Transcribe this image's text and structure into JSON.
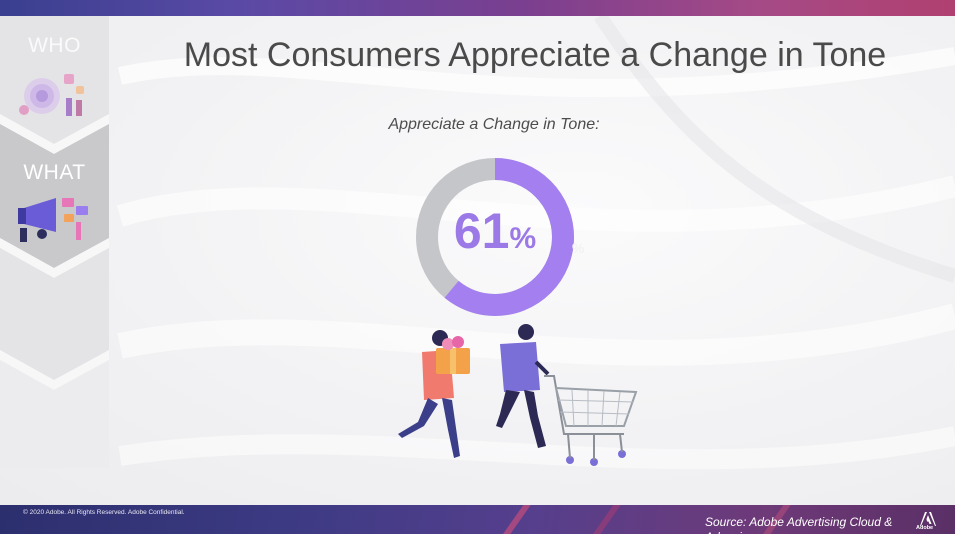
{
  "slide": {
    "title": "Most Consumers Appreciate a Change in Tone",
    "subtitle": "Appreciate a Change in Tone:"
  },
  "nav": {
    "items": [
      {
        "label": "WHO"
      },
      {
        "label": "WHAT"
      }
    ]
  },
  "donut": {
    "value": 61,
    "value_label": "61",
    "unit_label": "%",
    "colors": {
      "value": "#a47ff0",
      "remainder": "#c5c6c9"
    }
  },
  "footer": {
    "copyright": "© 2020 Adobe.  All Rights Reserved.  Adobe Confidential.",
    "source": "Source: Adobe Advertising Cloud & Advanis",
    "logo_text": "Adobe"
  },
  "colors": {
    "accent_purple": "#a47ff0",
    "footer_band": "#3c3a83",
    "top_band": "#5a4aa6"
  }
}
